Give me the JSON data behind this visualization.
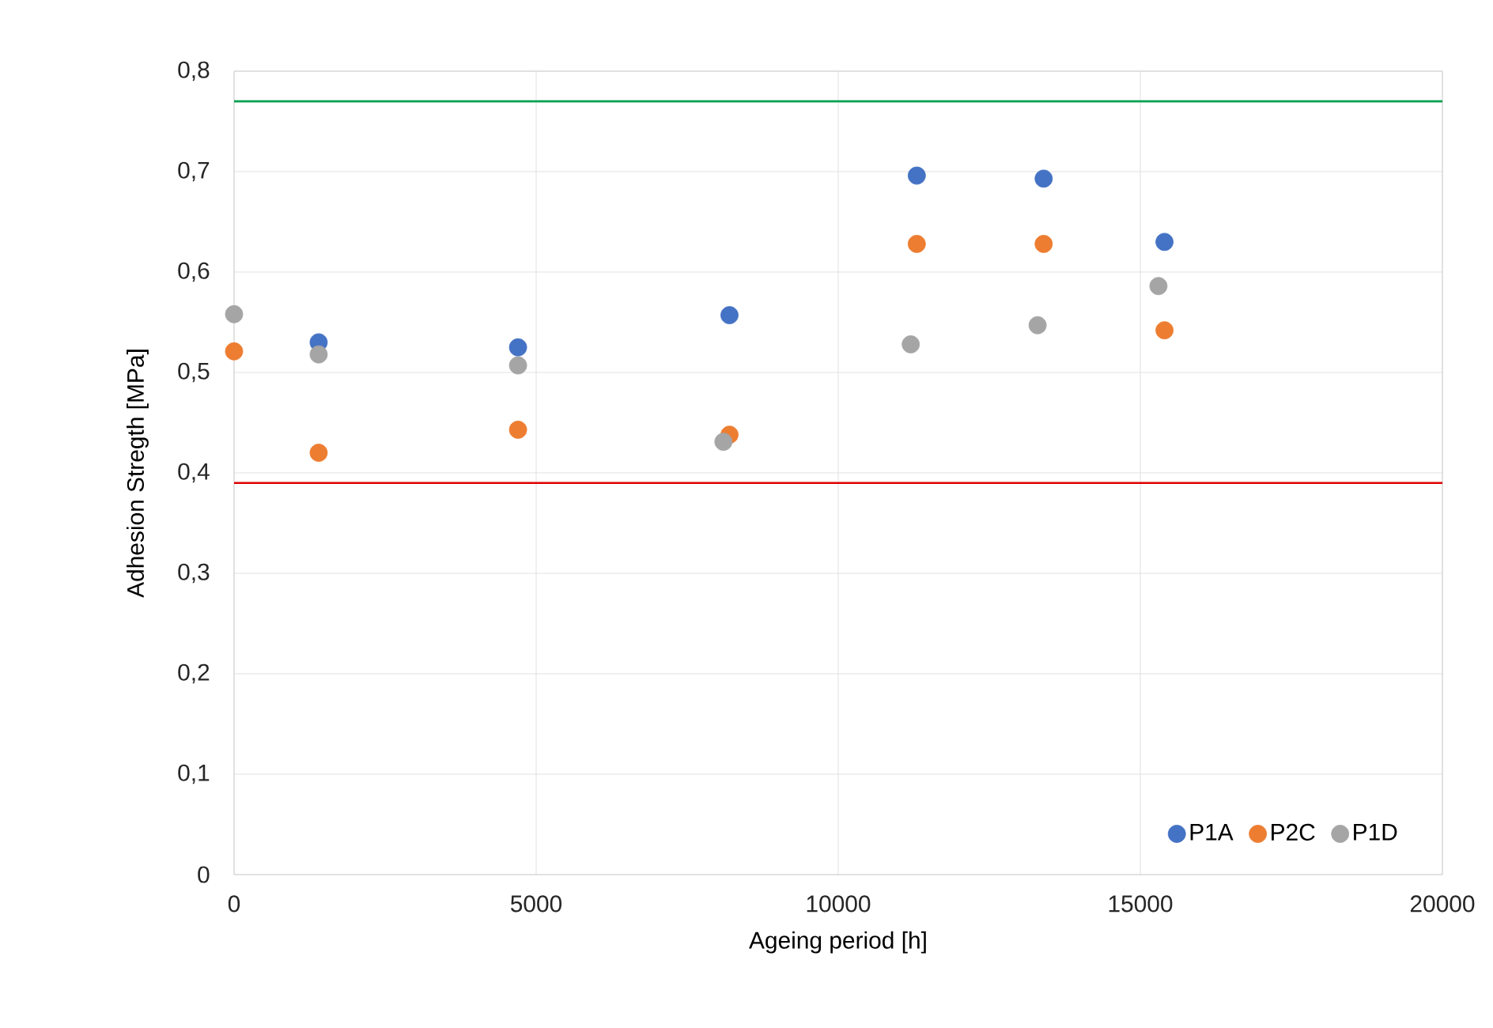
{
  "chart_data": {
    "type": "scatter",
    "xlabel": "Ageing period [h]",
    "ylabel": "Adhesion Stregth [MPa]",
    "xlim": [
      0,
      20000
    ],
    "xticks": [
      0,
      5000,
      10000,
      15000,
      20000
    ],
    "ylim": [
      0,
      0.8
    ],
    "yticks": [
      0,
      {
        "value": 0.1,
        "label": "0,1"
      },
      {
        "value": 0.2,
        "label": "0,2"
      },
      {
        "value": 0.3,
        "label": "0,3"
      },
      {
        "value": 0.4,
        "label": "0,4"
      },
      {
        "value": 0.5,
        "label": "0,5"
      },
      {
        "value": 0.6,
        "label": "0,6"
      },
      {
        "value": 0.7,
        "label": "0,7"
      },
      {
        "value": 0.8,
        "label": "0,8"
      }
    ],
    "grid": true,
    "legend": "bottom right",
    "marker": "circle",
    "series": [
      {
        "name": "P1A",
        "color": "#4472c4",
        "x": [
          1400,
          4700,
          8200,
          11300,
          13400,
          15400
        ],
        "values": [
          0.53,
          0.525,
          0.557,
          0.696,
          0.693,
          0.63
        ]
      },
      {
        "name": "P2C",
        "color": "#ed7d31",
        "x": [
          0,
          1400,
          4700,
          8200,
          11300,
          13400,
          15400
        ],
        "values": [
          0.521,
          0.42,
          0.443,
          0.438,
          0.628,
          0.628,
          0.542
        ]
      },
      {
        "name": "P1D",
        "color": "#a5a5a5",
        "x": [
          0,
          1400,
          4700,
          8100,
          11200,
          13300,
          15300
        ],
        "values": [
          0.558,
          0.518,
          0.507,
          0.431,
          0.528,
          0.547,
          0.586
        ]
      }
    ],
    "ref_lines": [
      {
        "axis": "y",
        "value": 0.77,
        "color": "#00a050"
      },
      {
        "axis": "y",
        "value": 0.39,
        "color": "#e00000"
      }
    ]
  }
}
